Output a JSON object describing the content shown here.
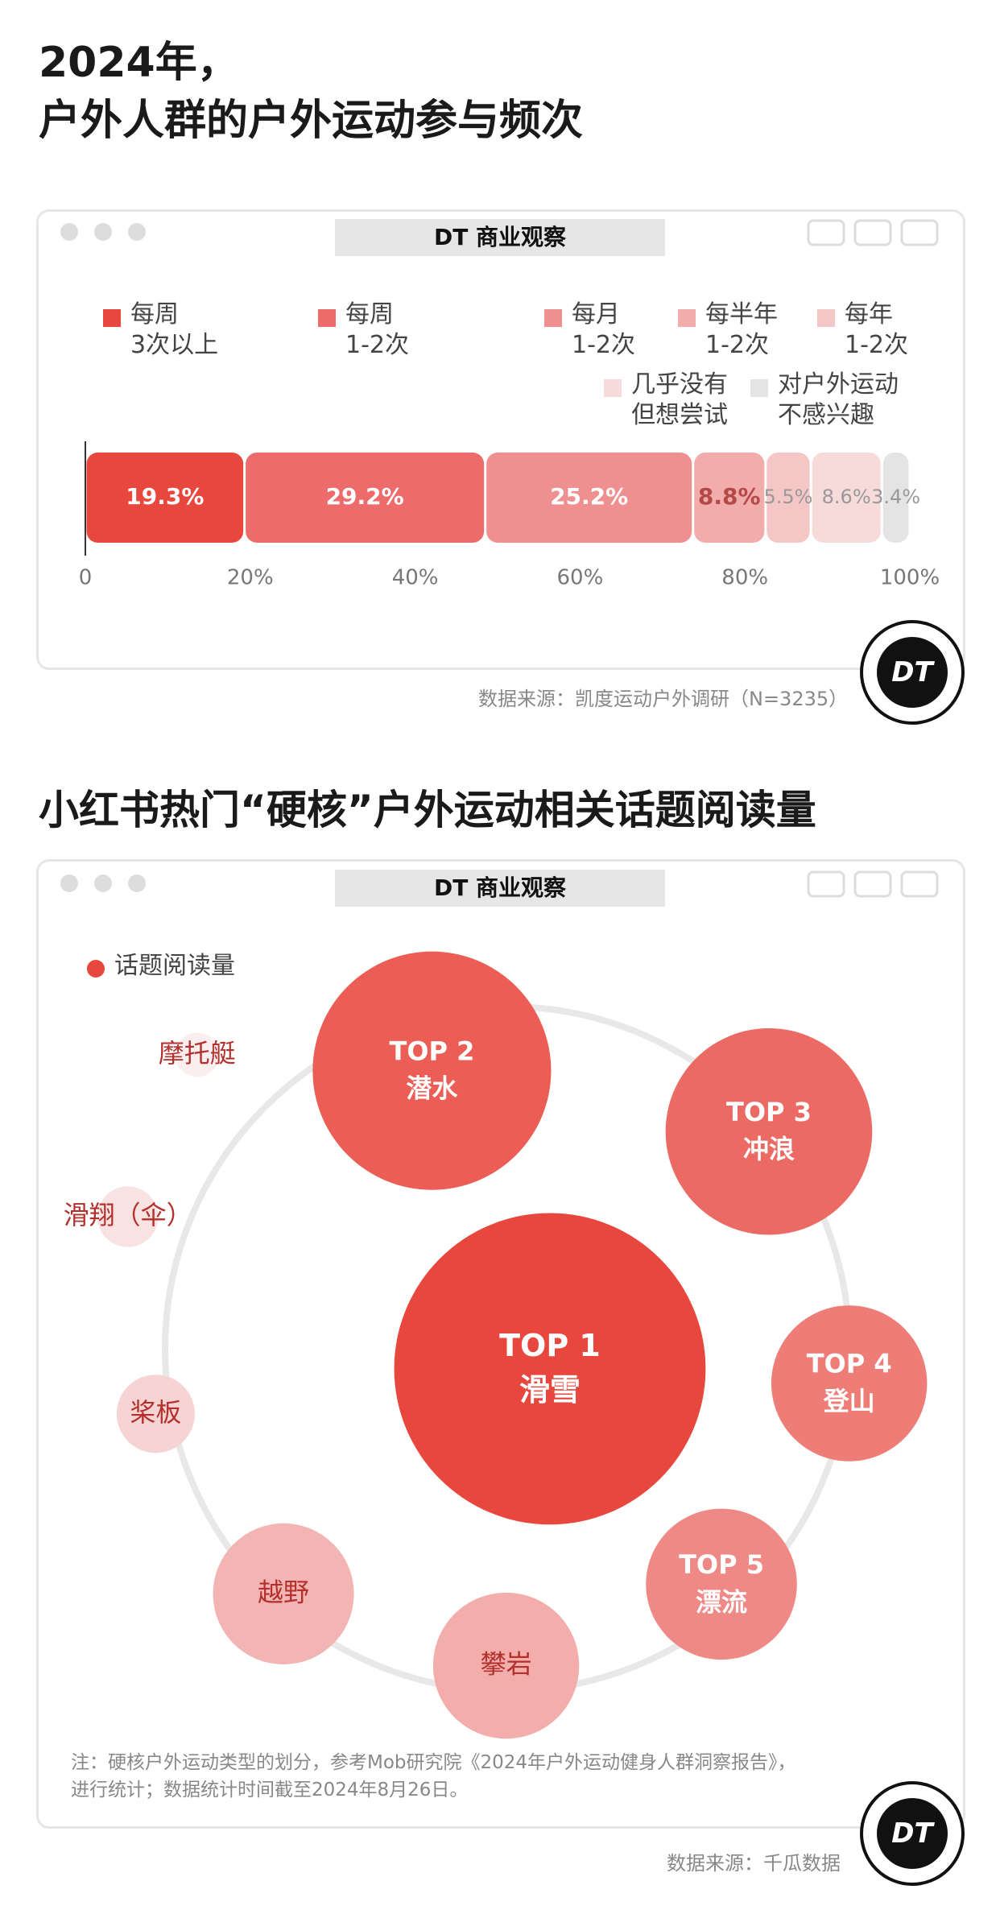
{
  "title": "2024年，\n户外人群的户外运动参与频次",
  "brand": "DT 商业观察",
  "chart_data": [
    {
      "type": "stacked_bar",
      "series": [
        {
          "name": "每周\n3次以上",
          "color": "#e8473e",
          "values": [
            19.3
          ],
          "value_labels": [
            "19.3%"
          ]
        },
        {
          "name": "每周\n1-2次",
          "color": "#ee6b6b",
          "values": [
            29.2
          ],
          "value_labels": [
            "29.2%"
          ]
        },
        {
          "name": "每月\n1-2次",
          "color": "#ef8f8f",
          "values": [
            25.2
          ],
          "value_labels": [
            "25.2%"
          ]
        },
        {
          "name": "每半年\n1-2次",
          "color": "#f3acac",
          "values": [
            8.8
          ],
          "value_labels": [
            "8.8%"
          ]
        },
        {
          "name": "每年\n1-2次",
          "color": "#f5c6c6",
          "values": [
            5.5
          ],
          "value_labels": [
            "5.5%"
          ]
        },
        {
          "name": "几乎没有\n但想尝试",
          "color": "#f7dada",
          "values": [
            8.6
          ],
          "value_labels": [
            "8.6%"
          ]
        },
        {
          "name": "对户外运动\n不感兴趣",
          "color": "#e4e4e4",
          "values": [
            3.4
          ],
          "value_labels": [
            "3.4%"
          ]
        }
      ],
      "xlim": [
        0,
        100
      ],
      "xticks": [
        0,
        {
          "value": 20,
          "label": "20%"
        },
        {
          "value": 40,
          "label": "40%"
        },
        {
          "value": 60,
          "label": "60%"
        },
        {
          "value": 80,
          "label": "80%"
        },
        {
          "value": 100,
          "label": "100%"
        }
      ],
      "source": "数据来源：凯度运动户外调研（N=3235）"
    },
    {
      "type": "bubble",
      "title": "小红书热门“硬核”户外运动相关话题阅读量",
      "categories": [
        "滑雪",
        "潜水",
        "冲浪",
        "登山",
        "漂流",
        "攀岩",
        "越野",
        "桨板",
        "滑翔（伞）",
        "摩托艇"
      ],
      "ranks": [
        "TOP 1",
        "TOP 2",
        "TOP 3",
        "TOP 4",
        "TOP 5",
        null,
        null,
        null,
        null,
        null
      ],
      "series": [
        {
          "name": "话题阅读量",
          "color": "#e8473e",
          "values": [
            100,
            58.6,
            44,
            25,
            23.5,
            22,
            20.5,
            6.3,
            3.8,
            2
          ]
        }
      ],
      "colors": [
        "#e8473e",
        "#eb5d55",
        "#ec6a64",
        "#ee7d78",
        "#ef8985",
        "#f3adab",
        "#f3b5b3",
        "#f6d4d3",
        "#f9e2e2",
        "#fbeeee"
      ],
      "note": "注：硬核户外运动类型的划分，参考Mob研究院《2024年户外运动健身人群洞察报告》，\n进行统计；数据统计时间截至2024年8月26日。",
      "source": "数据来源：千瓜数据"
    }
  ]
}
